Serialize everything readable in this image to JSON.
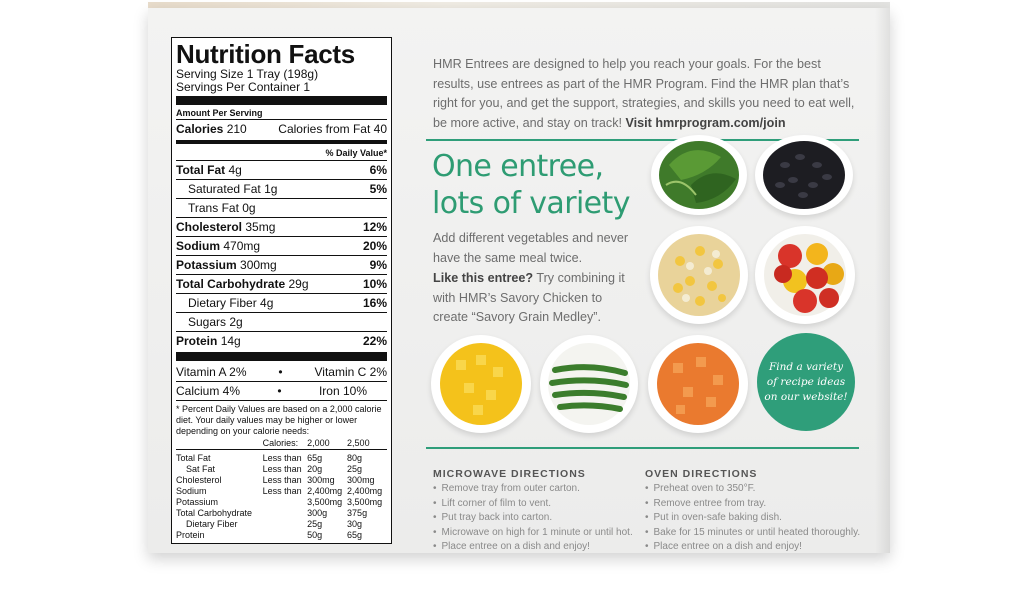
{
  "nutrition": {
    "title": "Nutrition Facts",
    "serving_size": "Serving Size 1 Tray (198g)",
    "servings_per_container": "Servings Per Container 1",
    "amount_per_serving": "Amount Per Serving",
    "calories_label": "Calories",
    "calories_value": "210",
    "calories_fat": "Calories from Fat 40",
    "daily_value_header": "% Daily Value*",
    "rows": [
      {
        "label": "Total Fat",
        "amount": "4g",
        "dv": "6%",
        "bold": true,
        "indent": false
      },
      {
        "label": "Saturated Fat",
        "amount": "1g",
        "dv": "5%",
        "bold": false,
        "indent": true
      },
      {
        "label": "Trans Fat",
        "amount": "0g",
        "dv": "",
        "bold": false,
        "indent": true
      },
      {
        "label": "Cholesterol",
        "amount": "35mg",
        "dv": "12%",
        "bold": true,
        "indent": false
      },
      {
        "label": "Sodium",
        "amount": "470mg",
        "dv": "20%",
        "bold": true,
        "indent": false
      },
      {
        "label": "Potassium",
        "amount": "300mg",
        "dv": "9%",
        "bold": true,
        "indent": false
      },
      {
        "label": "Total Carbohydrate",
        "amount": "29g",
        "dv": "10%",
        "bold": true,
        "indent": false
      },
      {
        "label": "Dietary Fiber",
        "amount": "4g",
        "dv": "16%",
        "bold": false,
        "indent": true
      },
      {
        "label": "Sugars",
        "amount": "2g",
        "dv": "",
        "bold": false,
        "indent": true
      },
      {
        "label": "Protein",
        "amount": "14g",
        "dv": "22%",
        "bold": true,
        "indent": false
      }
    ],
    "vitamin_a": "Vitamin A 2%",
    "vitamin_c": "Vitamin C 2%",
    "calcium": "Calcium 4%",
    "iron": "Iron 10%",
    "bullet": "•",
    "footnote": "* Percent Daily Values are based on a 2,000 calorie diet. Your daily values may be higher or lower depending on your calorie needs:",
    "table_header": [
      "",
      "Calories:",
      "2,000",
      "2,500"
    ],
    "table": [
      [
        "Total Fat",
        "Less than",
        "65g",
        "80g"
      ],
      [
        "Sat Fat",
        "Less than",
        "20g",
        "25g"
      ],
      [
        "Cholesterol",
        "Less than",
        "300mg",
        "300mg"
      ],
      [
        "Sodium",
        "Less than",
        "2,400mg",
        "2,400mg"
      ],
      [
        "Potassium",
        "",
        "3,500mg",
        "3,500mg"
      ],
      [
        "Total Carbohydrate",
        "",
        "300g",
        "375g"
      ],
      [
        "Dietary Fiber",
        "",
        "25g",
        "30g"
      ],
      [
        "Protein",
        "",
        "50g",
        "65g"
      ]
    ]
  },
  "intro": {
    "text": "HMR Entrees are designed to help you reach your goals. For the best results, use entrees as part of the HMR Program. Find the HMR plan that’s right for you, and get the support, strategies, and skills you need to eat well, be more active, and stay on track!",
    "link": "Visit hmrprogram.com/join"
  },
  "headline": {
    "line1": "One entree,",
    "line2": "lots of variety"
  },
  "para1": "Add different vegetables and never have the same meal twice.",
  "para2_bold": "Like this entree?",
  "para2_text": " Try combining it with HMR’s Savory Chicken to create “Savory Grain Medley”.",
  "badge": {
    "line1": "Find a variety",
    "line2": "of recipe ideas",
    "line3": "on our website!"
  },
  "bowls": [
    {
      "name": "spinach",
      "color": "#3f7a2a"
    },
    {
      "name": "black-beans",
      "color": "#1d1d22"
    },
    {
      "name": "corn-and-beans",
      "color": "#e3c56b"
    },
    {
      "name": "cherry-tomatoes",
      "color": "#d9342a"
    },
    {
      "name": "yellow-peppers",
      "color": "#f4c21b"
    },
    {
      "name": "green-beans",
      "color": "#3b7d2c"
    },
    {
      "name": "carrots",
      "color": "#ea7a2f"
    }
  ],
  "microwave": {
    "title": "MICROWAVE DIRECTIONS",
    "steps": [
      "Remove tray from outer carton.",
      "Lift corner of film to vent.",
      "Put tray back into carton.",
      "Microwave on high for 1 minute or until hot.",
      "Place entree on a dish and enjoy!"
    ]
  },
  "oven": {
    "title": "OVEN DIRECTIONS",
    "steps": [
      "Preheat oven to 350°F.",
      "Remove entree from tray.",
      "Put in oven-safe baking dish.",
      "Bake for 15 minutes or until heated thoroughly.",
      "Place entree on a dish and enjoy!"
    ]
  },
  "colors": {
    "accent_green": "#2f9e7a",
    "text_gray": "#6d6d6d",
    "box_bg": "#efefee"
  }
}
